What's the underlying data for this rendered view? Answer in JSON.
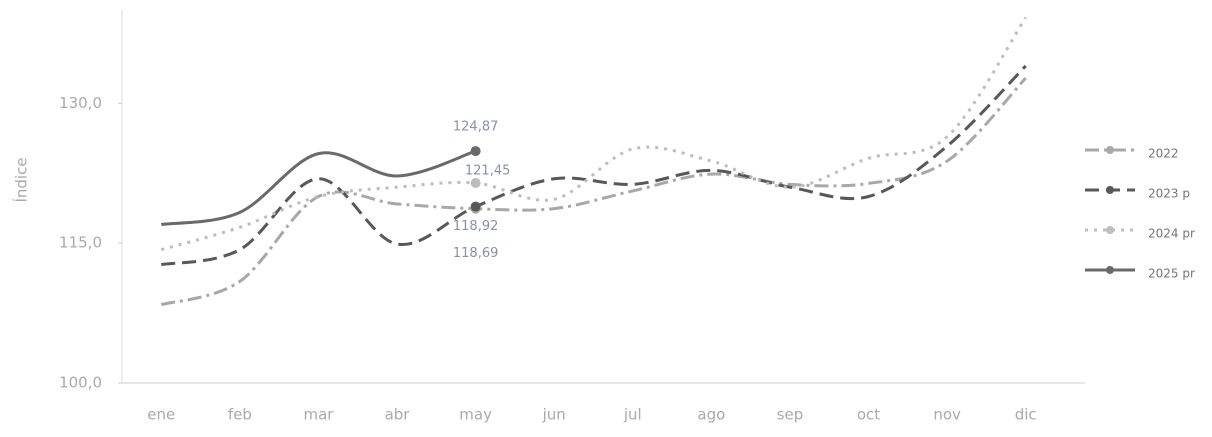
{
  "chart_data": {
    "type": "line",
    "y_label": "Índice",
    "categories": [
      "ene",
      "feb",
      "mar",
      "abr",
      "may",
      "jun",
      "jul",
      "ago",
      "sep",
      "oct",
      "nov",
      "dic"
    ],
    "ylim": [
      100,
      140
    ],
    "yticks": [
      {
        "value": 100,
        "label": "100,0"
      },
      {
        "value": 115,
        "label": "115,0"
      },
      {
        "value": 130,
        "label": "130,0"
      }
    ],
    "series": [
      {
        "name": "2022",
        "color": "#a8a8a8",
        "dash": "14 5 3 5",
        "values": [
          108.4,
          110.9,
          120.0,
          119.2,
          118.69,
          118.7,
          120.6,
          122.4,
          121.3,
          121.4,
          123.8,
          132.7
        ],
        "value_labels": [
          null,
          null,
          null,
          null,
          "118,69",
          null,
          null,
          null,
          null,
          null,
          null,
          null
        ]
      },
      {
        "name": "2023 p",
        "color": "#585858",
        "dash": "14 7",
        "values": [
          112.7,
          114.3,
          121.9,
          114.9,
          118.92,
          121.9,
          121.3,
          122.8,
          121.0,
          120.0,
          125.4,
          134.0
        ],
        "value_labels": [
          null,
          null,
          null,
          null,
          "118,92",
          null,
          null,
          null,
          null,
          null,
          null,
          null
        ]
      },
      {
        "name": "2024 pr",
        "color": "#bdbdbd",
        "dash": "3 6",
        "values": [
          114.3,
          116.7,
          120.0,
          121.0,
          121.45,
          119.7,
          125.1,
          123.8,
          121.0,
          124.1,
          126.4,
          139.2
        ],
        "value_labels": [
          null,
          null,
          null,
          null,
          "121,45",
          null,
          null,
          null,
          null,
          null,
          null,
          null
        ]
      },
      {
        "name": "2025 pr",
        "color": "#6a6a6a",
        "dash": "",
        "values": [
          117.0,
          118.3,
          124.6,
          122.2,
          124.87,
          null,
          null,
          null,
          null,
          null,
          null,
          null
        ],
        "value_labels": [
          null,
          null,
          null,
          null,
          "124,87",
          null,
          null,
          null,
          null,
          null,
          null,
          null
        ]
      }
    ]
  }
}
